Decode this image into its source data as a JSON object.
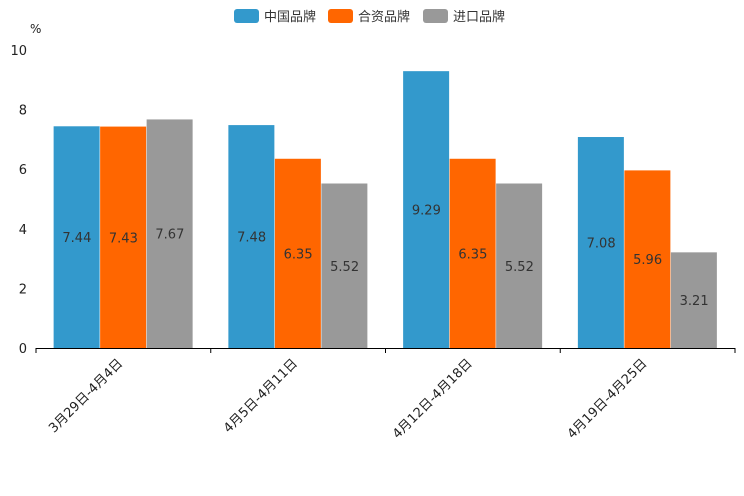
{
  "chart_data": {
    "type": "bar",
    "title": "",
    "xlabel": "",
    "ylabel": "%",
    "ylim": [
      0,
      10
    ],
    "yticks": [
      0,
      2,
      4,
      6,
      8,
      10
    ],
    "grid": false,
    "legend_position": "top-center",
    "categories": [
      "3月29日-4月4日",
      "4月5日-4月11日",
      "4月12日-4月18日",
      "4月19日-4月25日"
    ],
    "series": [
      {
        "name": "中国品牌",
        "color": "#3399CC",
        "values": [
          7.44,
          7.48,
          9.29,
          7.08
        ]
      },
      {
        "name": "合资品牌",
        "color": "#FF6600",
        "values": [
          7.43,
          6.35,
          6.35,
          5.96
        ]
      },
      {
        "name": "进口品牌",
        "color": "#999999",
        "values": [
          7.67,
          5.52,
          5.52,
          3.21
        ]
      }
    ]
  }
}
